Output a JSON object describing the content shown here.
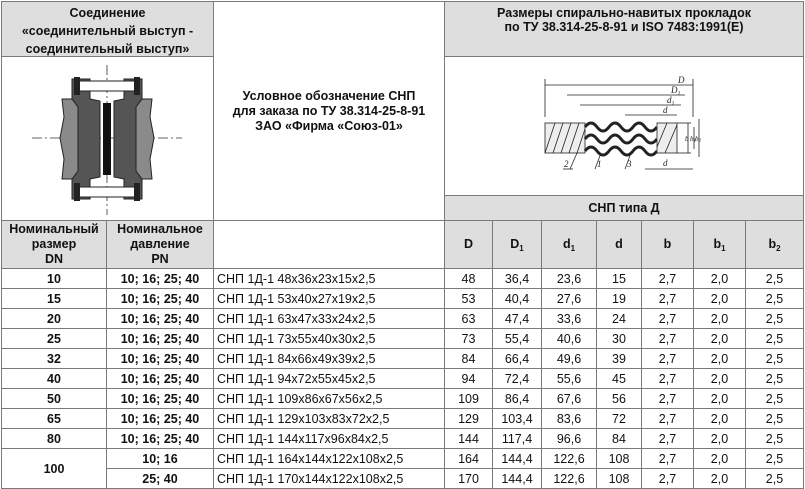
{
  "header": {
    "connection_title": [
      "Соединение",
      "«соединительный выступ -",
      "соединительный выступ»"
    ],
    "designation_title": [
      "Условное обозначение СНП",
      "для заказа по ТУ 38.314-25-8-91",
      "ЗАО «Фирма «Союз-01»"
    ],
    "dimensions_title": [
      "Размеры спирально-навитых прокладок",
      "по ТУ 38.314-25-8-91 и ISO 7483:1991(E)"
    ],
    "gasket_type_label": "СНП типа Д",
    "drawing_labels": {
      "D": "D",
      "D1": "D",
      "D1_sub": "1",
      "d1": "d",
      "d1_sub": "1",
      "d": "d",
      "b": "b",
      "b1": "b",
      "b1_sub": "1",
      "b2": "b",
      "b2_sub": "2",
      "n1": "1",
      "n2": "2",
      "n3": "3"
    }
  },
  "columns": {
    "dn": [
      "Номинальный",
      "размер",
      "DN"
    ],
    "pn": [
      "Номинальное",
      "давление",
      "PN"
    ],
    "D": {
      "main": "D",
      "sub": ""
    },
    "D1": {
      "main": "D",
      "sub": "1"
    },
    "d1": {
      "main": "d",
      "sub": "1"
    },
    "d": {
      "main": "d",
      "sub": ""
    },
    "b": {
      "main": "b",
      "sub": ""
    },
    "b1": {
      "main": "b",
      "sub": "1"
    },
    "b2": {
      "main": "b",
      "sub": "2"
    }
  },
  "rows": [
    {
      "dn": "10",
      "pn": "10; 16; 25; 40",
      "designation": "СНП 1Д-1 48х36х23х15х2,5",
      "D": "48",
      "D1": "36,4",
      "d1": "23,6",
      "d": "15",
      "b": "2,7",
      "b1": "2,0",
      "b2": "2,5"
    },
    {
      "dn": "15",
      "pn": "10; 16; 25; 40",
      "designation": "СНП 1Д-1 53х40х27х19х2,5",
      "D": "53",
      "D1": "40,4",
      "d1": "27,6",
      "d": "19",
      "b": "2,7",
      "b1": "2,0",
      "b2": "2,5"
    },
    {
      "dn": "20",
      "pn": "10; 16; 25; 40",
      "designation": "СНП 1Д-1 63х47х33х24х2,5",
      "D": "63",
      "D1": "47,4",
      "d1": "33,6",
      "d": "24",
      "b": "2,7",
      "b1": "2,0",
      "b2": "2,5"
    },
    {
      "dn": "25",
      "pn": "10; 16; 25; 40",
      "designation": "СНП 1Д-1 73х55х40х30х2,5",
      "D": "73",
      "D1": "55,4",
      "d1": "40,6",
      "d": "30",
      "b": "2,7",
      "b1": "2,0",
      "b2": "2,5"
    },
    {
      "dn": "32",
      "pn": "10; 16; 25; 40",
      "designation": "СНП 1Д-1 84х66х49х39х2,5",
      "D": "84",
      "D1": "66,4",
      "d1": "49,6",
      "d": "39",
      "b": "2,7",
      "b1": "2,0",
      "b2": "2,5"
    },
    {
      "dn": "40",
      "pn": "10; 16; 25; 40",
      "designation": "СНП 1Д-1 94х72х55х45х2,5",
      "D": "94",
      "D1": "72,4",
      "d1": "55,6",
      "d": "45",
      "b": "2,7",
      "b1": "2,0",
      "b2": "2,5"
    },
    {
      "dn": "50",
      "pn": "10; 16; 25; 40",
      "designation": "СНП 1Д-1 109х86х67х56х2,5",
      "D": "109",
      "D1": "86,4",
      "d1": "67,6",
      "d": "56",
      "b": "2,7",
      "b1": "2,0",
      "b2": "2,5"
    },
    {
      "dn": "65",
      "pn": "10; 16; 25; 40",
      "designation": "СНП 1Д-1 129х103х83х72х2,5",
      "D": "129",
      "D1": "103,4",
      "d1": "83,6",
      "d": "72",
      "b": "2,7",
      "b1": "2,0",
      "b2": "2,5"
    },
    {
      "dn": "80",
      "pn": "10; 16; 25; 40",
      "designation": "СНП 1Д-1 144х117х96х84х2,5",
      "D": "144",
      "D1": "117,4",
      "d1": "96,6",
      "d": "84",
      "b": "2,7",
      "b1": "2,0",
      "b2": "2,5"
    },
    {
      "dn": "100",
      "pn": "10; 16",
      "designation": "СНП 1Д-1 164х144х122х108х2,5",
      "D": "164",
      "D1": "144,4",
      "d1": "122,6",
      "d": "108",
      "b": "2,7",
      "b1": "2,0",
      "b2": "2,5"
    },
    {
      "dn": "",
      "pn": "25; 40",
      "designation": "СНП 1Д-1 170х144х122х108х2,5",
      "D": "170",
      "D1": "144,4",
      "d1": "122,6",
      "d": "108",
      "b": "2,7",
      "b1": "2,0",
      "b2": "2,5"
    }
  ]
}
